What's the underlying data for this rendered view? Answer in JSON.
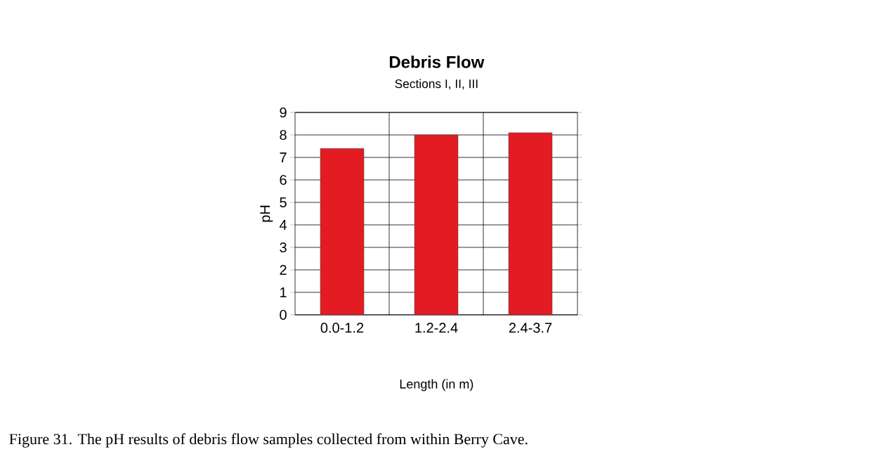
{
  "chart_data": {
    "type": "bar",
    "title": "Debris Flow",
    "subtitle": "Sections I, II, III",
    "xlabel": "Length (in m)",
    "ylabel": "pH",
    "categories": [
      "0.0-1.2",
      "1.2-2.4",
      "2.4-3.7"
    ],
    "values": [
      7.4,
      8.0,
      8.1
    ],
    "color": "#e31b23",
    "ylim": [
      0,
      9
    ],
    "yticks": [
      0,
      1,
      2,
      3,
      4,
      5,
      6,
      7,
      8,
      9
    ],
    "grid": true,
    "annotations": [
      "Figure 31.  The pH results of debris flow samples collected from within Berry Cave."
    ]
  }
}
